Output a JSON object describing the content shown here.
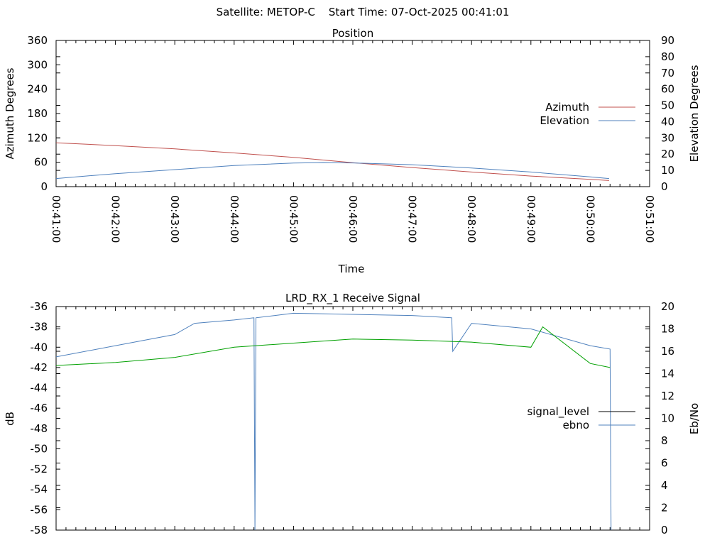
{
  "header": {
    "title": "Satellite: METOP-C    Start Time: 07-Oct-2025 00:41:01"
  },
  "colors": {
    "azimuth": "#c0504d",
    "elevation": "#4f81bd",
    "ebno": "#4f81bd",
    "signal_level": "#00a000",
    "signal_level_legend": "#000000"
  },
  "chart_data": [
    {
      "type": "line",
      "title": "Position",
      "xlabel": "Time",
      "ylabel": "Azimuth Degrees",
      "y2label": "Elevation Degrees",
      "xlim": [
        "00:41:00",
        "00:51:00"
      ],
      "x_ticks": [
        "00:41:00",
        "00:42:00",
        "00:43:00",
        "00:44:00",
        "00:45:00",
        "00:46:00",
        "00:47:00",
        "00:48:00",
        "00:49:00",
        "00:50:00",
        "00:51:00"
      ],
      "ylim": [
        0,
        360
      ],
      "y_ticks": [
        "0",
        "60",
        "120",
        "180",
        "240",
        "300",
        "360"
      ],
      "y2lim": [
        0,
        90
      ],
      "y2_ticks": [
        "0",
        "10",
        "20",
        "30",
        "40",
        "50",
        "60",
        "70",
        "80",
        "90"
      ],
      "legend_position": "right",
      "series": [
        {
          "name": "Azimuth",
          "axis": "y",
          "x": [
            "00:41:00",
            "00:42:00",
            "00:43:00",
            "00:44:00",
            "00:45:00",
            "00:46:00",
            "00:47:00",
            "00:48:00",
            "00:49:00",
            "00:50:00",
            "00:50:19"
          ],
          "values": [
            108,
            101,
            93,
            83,
            72,
            59,
            47,
            36,
            26,
            18,
            15
          ]
        },
        {
          "name": "Elevation",
          "axis": "y2",
          "x": [
            "00:41:00",
            "00:42:00",
            "00:43:00",
            "00:44:00",
            "00:45:00",
            "00:45:30",
            "00:46:00",
            "00:47:00",
            "00:48:00",
            "00:49:00",
            "00:50:00",
            "00:50:19"
          ],
          "values": [
            5,
            8,
            10.5,
            13,
            14.5,
            14.8,
            14.6,
            13.5,
            11.5,
            9,
            6,
            5
          ]
        }
      ]
    },
    {
      "type": "line",
      "title": "LRD_RX_1 Receive Signal",
      "ylabel": "dB",
      "y2label": "Eb/No",
      "xlim": [
        "00:41:00",
        "00:51:00"
      ],
      "ylim": [
        -58,
        -36
      ],
      "y_ticks": [
        "-36",
        "-38",
        "-40",
        "-42",
        "-44",
        "-46",
        "-48",
        "-50",
        "-52",
        "-54",
        "-56",
        "-58"
      ],
      "y2lim": [
        0,
        20
      ],
      "y2_ticks": [
        "0",
        "2",
        "4",
        "6",
        "8",
        "10",
        "12",
        "14",
        "16",
        "18",
        "20"
      ],
      "legend_position": "right",
      "series": [
        {
          "name": "signal_level",
          "axis": "y",
          "x": [
            "00:41:00",
            "00:42:00",
            "00:43:00",
            "00:44:00",
            "00:45:00",
            "00:46:00",
            "00:47:00",
            "00:48:00",
            "00:49:00",
            "00:49:12",
            "00:50:00",
            "00:50:20"
          ],
          "values": [
            -41.8,
            -41.5,
            -41.0,
            -40.0,
            -39.6,
            -39.2,
            -39.3,
            -39.5,
            -40.0,
            -38.0,
            -41.6,
            -42.0
          ]
        },
        {
          "name": "ebno",
          "axis": "y2",
          "x": [
            "00:41:00",
            "00:42:00",
            "00:43:00",
            "00:43:20",
            "00:44:00",
            "00:44:20",
            "00:44:21",
            "00:44:22",
            "00:45:00",
            "00:46:00",
            "00:47:00",
            "00:47:40",
            "00:47:41",
            "00:48:00",
            "00:49:00",
            "00:50:00",
            "00:50:20",
            "00:50:21"
          ],
          "values": [
            15.5,
            16.5,
            17.5,
            18.5,
            18.8,
            19.0,
            0,
            19.0,
            19.4,
            19.3,
            19.2,
            19.0,
            16.0,
            18.5,
            18.0,
            16.5,
            16.2,
            0
          ]
        }
      ]
    }
  ]
}
